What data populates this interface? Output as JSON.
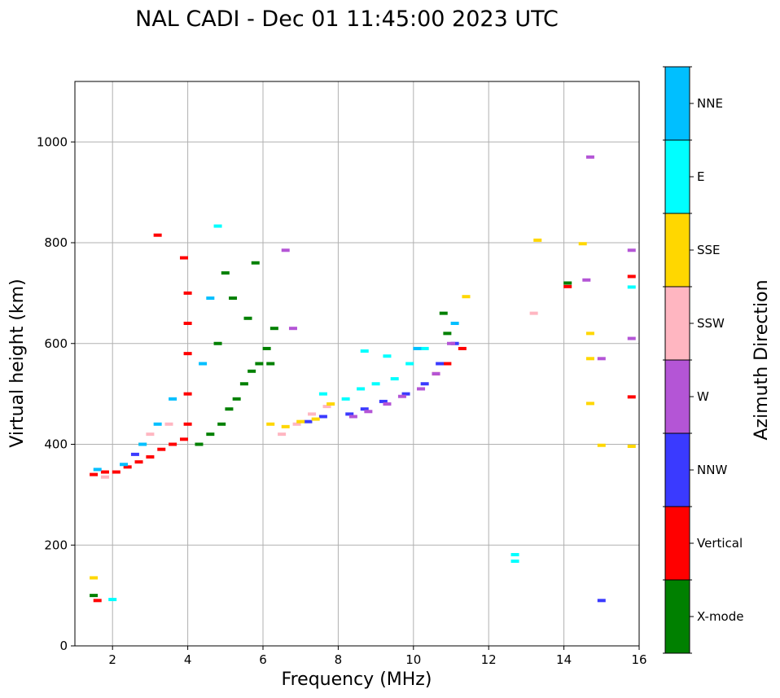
{
  "chart_data": {
    "type": "scatter",
    "title": "NAL CADI - Dec 01 11:45:00 2023 UTC",
    "xlabel": "Frequency (MHz)",
    "ylabel": "Virtual height (km)",
    "xlim": [
      1,
      16
    ],
    "ylim": [
      0,
      1120
    ],
    "xticks": [
      2,
      4,
      6,
      8,
      10,
      12,
      14,
      16
    ],
    "yticks": [
      0,
      200,
      400,
      600,
      800,
      1000
    ],
    "grid": true,
    "colorbar": {
      "label": "Azimuth Direction",
      "categories": [
        {
          "name": "X-mode",
          "color": "#008000"
        },
        {
          "name": "Vertical",
          "color": "#ff0000"
        },
        {
          "name": "NNW",
          "color": "#3a3aff"
        },
        {
          "name": "W",
          "color": "#b455d6"
        },
        {
          "name": "SSW",
          "color": "#ffb6c1"
        },
        {
          "name": "SSE",
          "color": "#ffd700"
        },
        {
          "name": "E",
          "color": "#00ffff"
        },
        {
          "name": "NNE",
          "color": "#00bfff"
        }
      ]
    },
    "series": [
      {
        "name": "X-mode",
        "points": [
          [
            4.3,
            400
          ],
          [
            4.6,
            420
          ],
          [
            4.9,
            440
          ],
          [
            5.1,
            470
          ],
          [
            5.3,
            490
          ],
          [
            5.5,
            520
          ],
          [
            5.7,
            545
          ],
          [
            5.9,
            560
          ],
          [
            6.1,
            590
          ],
          [
            6.3,
            630
          ],
          [
            5.0,
            740
          ],
          [
            5.8,
            760
          ],
          [
            5.2,
            690
          ],
          [
            5.6,
            650
          ],
          [
            4.8,
            600
          ],
          [
            6.2,
            560
          ],
          [
            10.8,
            660
          ],
          [
            10.9,
            620
          ],
          [
            14.1,
            720
          ],
          [
            1.5,
            100
          ]
        ]
      },
      {
        "name": "Vertical",
        "points": [
          [
            1.5,
            340
          ],
          [
            1.8,
            345
          ],
          [
            2.1,
            345
          ],
          [
            2.4,
            355
          ],
          [
            2.7,
            365
          ],
          [
            3.0,
            375
          ],
          [
            3.3,
            390
          ],
          [
            3.6,
            400
          ],
          [
            3.9,
            410
          ],
          [
            4.0,
            440
          ],
          [
            4.0,
            500
          ],
          [
            4.0,
            580
          ],
          [
            4.0,
            640
          ],
          [
            4.0,
            700
          ],
          [
            3.9,
            770
          ],
          [
            3.2,
            815
          ],
          [
            10.6,
            540
          ],
          [
            10.9,
            560
          ],
          [
            11.3,
            590
          ],
          [
            14.1,
            713
          ],
          [
            15.8,
            733
          ],
          [
            15.8,
            494
          ],
          [
            1.6,
            90
          ]
        ]
      },
      {
        "name": "NNW",
        "points": [
          [
            7.2,
            445
          ],
          [
            7.6,
            455
          ],
          [
            8.3,
            460
          ],
          [
            8.7,
            470
          ],
          [
            9.2,
            485
          ],
          [
            9.8,
            500
          ],
          [
            10.3,
            520
          ],
          [
            10.7,
            560
          ],
          [
            11.1,
            600
          ],
          [
            15.0,
            90
          ],
          [
            2.6,
            380
          ]
        ]
      },
      {
        "name": "W",
        "points": [
          [
            8.4,
            455
          ],
          [
            8.8,
            465
          ],
          [
            9.3,
            480
          ],
          [
            9.7,
            495
          ],
          [
            10.2,
            510
          ],
          [
            10.6,
            540
          ],
          [
            11.0,
            600
          ],
          [
            14.7,
            970
          ],
          [
            15.8,
            785
          ],
          [
            15.8,
            610
          ],
          [
            15.0,
            570
          ],
          [
            6.6,
            785
          ],
          [
            6.8,
            630
          ],
          [
            14.6,
            726
          ]
        ]
      },
      {
        "name": "SSW",
        "points": [
          [
            6.5,
            420
          ],
          [
            6.9,
            440
          ],
          [
            7.3,
            460
          ],
          [
            7.7,
            475
          ],
          [
            3.0,
            420
          ],
          [
            3.5,
            440
          ],
          [
            13.2,
            660
          ],
          [
            1.8,
            335
          ]
        ]
      },
      {
        "name": "SSE",
        "points": [
          [
            6.2,
            440
          ],
          [
            6.6,
            435
          ],
          [
            7.0,
            445
          ],
          [
            7.4,
            450
          ],
          [
            7.8,
            480
          ],
          [
            13.3,
            805
          ],
          [
            14.5,
            798
          ],
          [
            14.7,
            620
          ],
          [
            14.7,
            570
          ],
          [
            14.7,
            481
          ],
          [
            15.0,
            398
          ],
          [
            15.8,
            396
          ],
          [
            1.5,
            135
          ],
          [
            2.8,
            400
          ],
          [
            11.4,
            693
          ]
        ]
      },
      {
        "name": "E",
        "points": [
          [
            8.2,
            490
          ],
          [
            8.6,
            510
          ],
          [
            9.0,
            520
          ],
          [
            9.5,
            530
          ],
          [
            9.9,
            560
          ],
          [
            10.3,
            590
          ],
          [
            8.7,
            585
          ],
          [
            12.7,
            181
          ],
          [
            12.7,
            168
          ],
          [
            15.8,
            712
          ],
          [
            4.8,
            833
          ],
          [
            2.0,
            92
          ],
          [
            7.6,
            500
          ],
          [
            9.3,
            575
          ]
        ]
      },
      {
        "name": "NNE",
        "points": [
          [
            1.6,
            350
          ],
          [
            2.3,
            360
          ],
          [
            2.8,
            400
          ],
          [
            3.2,
            440
          ],
          [
            3.6,
            490
          ],
          [
            4.4,
            560
          ],
          [
            4.6,
            690
          ],
          [
            11.1,
            640
          ],
          [
            10.1,
            590
          ]
        ]
      }
    ]
  }
}
